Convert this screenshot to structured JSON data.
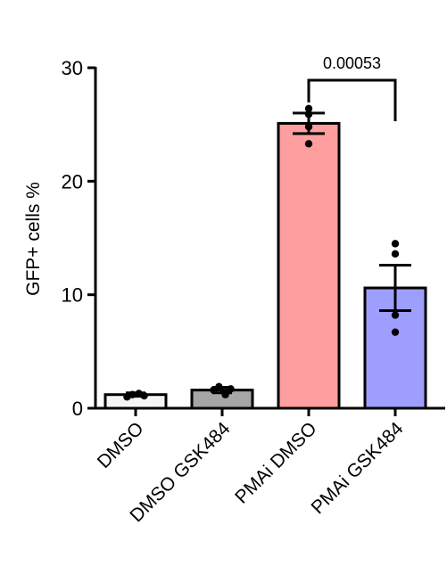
{
  "chart_data": {
    "type": "bar",
    "title": "",
    "ylabel": "GFP+ cells %",
    "xlabel": "",
    "ylim": [
      0,
      30
    ],
    "yticks": [
      0,
      10,
      20,
      30
    ],
    "categories": [
      "DMSO",
      "DMSO GSK484",
      "PMAi DMSO",
      "PMAi GSK484"
    ],
    "values": [
      1.2,
      1.6,
      25.1,
      10.6
    ],
    "errors": [
      0.15,
      0.25,
      0.9,
      2.0
    ],
    "points": [
      [
        1.0,
        1.2,
        1.3,
        1.1
      ],
      [
        1.6,
        1.9,
        1.2,
        1.7
      ],
      [
        23.3,
        24.8,
        26.4,
        25.9
      ],
      [
        6.7,
        8.2,
        13.6,
        14.5
      ]
    ],
    "bar_colors": [
      "#f5f5f5",
      "#a6a6a6",
      "#ff9e9e",
      "#9e9eff"
    ],
    "annotations": [
      {
        "text": "0.00053",
        "between": [
          2,
          3
        ]
      }
    ],
    "grid": false,
    "legend": "none"
  }
}
